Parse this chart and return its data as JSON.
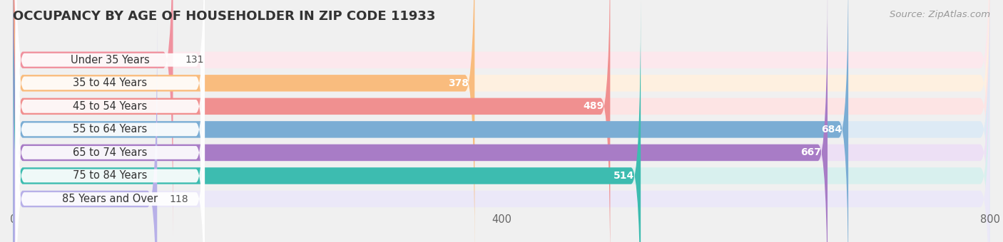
{
  "title": "OCCUPANCY BY AGE OF HOUSEHOLDER IN ZIP CODE 11933",
  "source": "Source: ZipAtlas.com",
  "categories": [
    "Under 35 Years",
    "35 to 44 Years",
    "45 to 54 Years",
    "55 to 64 Years",
    "65 to 74 Years",
    "75 to 84 Years",
    "85 Years and Over"
  ],
  "values": [
    131,
    378,
    489,
    684,
    667,
    514,
    118
  ],
  "bar_colors": [
    "#f0929f",
    "#f9bc7e",
    "#f09090",
    "#7badd4",
    "#a87cc6",
    "#3dbcb0",
    "#b8b0e8"
  ],
  "track_colors": [
    "#fce8ed",
    "#fef0e0",
    "#fde4e4",
    "#ddeaf5",
    "#ede0f5",
    "#d8f0ee",
    "#ebe8f8"
  ],
  "xlim": [
    0,
    800
  ],
  "xticks": [
    0,
    400,
    800
  ],
  "background_color": "#f0f0f0",
  "title_fontsize": 13,
  "label_fontsize": 10.5,
  "value_fontsize": 10,
  "source_fontsize": 9.5,
  "value_threshold": 200
}
